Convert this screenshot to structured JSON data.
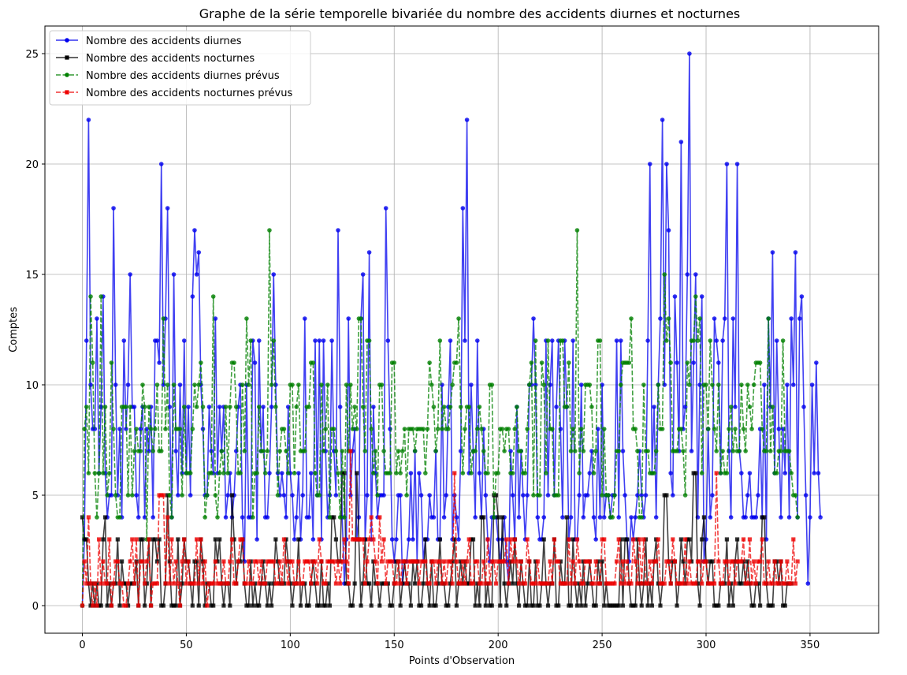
{
  "chart_data": {
    "type": "line",
    "title": "Graphe de la série temporelle bivariée du nombre des accidents diurnes et nocturnes",
    "xlabel": "Points d'Observation",
    "ylabel": "Comptes",
    "xlim": [
      -18,
      383
    ],
    "ylim": [
      -1.25,
      26.25
    ],
    "xticks": [
      0,
      50,
      100,
      150,
      200,
      250,
      300,
      350
    ],
    "yticks": [
      0,
      5,
      10,
      15,
      20,
      25
    ],
    "grid": true,
    "legend_position": "top-left",
    "series": [
      {
        "name": "Nombre des accidents diurnes",
        "color": "#0000ee",
        "line_style": "solid",
        "marker": "circle",
        "x_start": 0,
        "values": [
          0,
          3,
          12,
          22,
          10,
          8,
          8,
          13,
          6,
          9,
          14,
          6,
          4,
          5,
          5,
          18,
          10,
          5,
          8,
          4,
          12,
          8,
          10,
          15,
          9,
          9,
          5,
          4,
          8,
          9,
          4,
          8,
          7,
          9,
          4,
          12,
          12,
          11,
          20,
          10,
          13,
          18,
          9,
          4,
          15,
          7,
          5,
          10,
          6,
          12,
          6,
          9,
          5,
          14,
          17,
          15,
          16,
          10,
          8,
          5,
          5,
          9,
          7,
          6,
          13,
          6,
          9,
          7,
          9,
          4,
          5,
          6,
          4,
          5,
          7,
          9,
          10,
          4,
          2,
          10,
          4,
          4,
          12,
          11,
          3,
          12,
          7,
          9,
          4,
          4,
          6,
          9,
          15,
          10,
          6,
          5,
          6,
          5,
          4,
          9,
          6,
          5,
          3,
          4,
          6,
          3,
          5,
          13,
          4,
          4,
          6,
          3,
          12,
          5,
          12,
          3,
          12,
          7,
          4,
          5,
          12,
          7,
          5,
          17,
          9,
          4,
          1,
          3,
          13,
          5,
          7,
          8,
          3,
          4,
          13,
          15,
          3,
          5,
          16,
          3,
          9,
          6,
          4,
          5,
          5,
          5,
          18,
          12,
          8,
          3,
          2,
          3,
          5,
          5,
          1,
          2,
          2,
          3,
          6,
          3,
          7,
          2,
          6,
          5,
          2,
          3,
          3,
          5,
          4,
          4,
          7,
          3,
          3,
          10,
          4,
          5,
          9,
          12,
          3,
          5,
          4,
          3,
          7,
          18,
          12,
          22,
          6,
          10,
          7,
          4,
          12,
          6,
          4,
          8,
          5,
          3,
          2,
          4,
          4,
          4,
          3,
          2,
          3,
          4,
          2,
          1,
          7,
          5,
          3,
          9,
          4,
          7,
          5,
          3,
          5,
          10,
          10,
          13,
          10,
          4,
          3,
          3,
          4,
          12,
          5,
          10,
          12,
          5,
          9,
          12,
          8,
          4,
          12,
          9,
          3,
          4,
          12,
          3,
          3,
          5,
          10,
          4,
          5,
          5,
          6,
          7,
          4,
          3,
          8,
          4,
          10,
          4,
          5,
          5,
          4,
          5,
          5,
          12,
          4,
          12,
          7,
          5,
          3,
          2,
          4,
          3,
          4,
          5,
          7,
          5,
          4,
          5,
          12,
          20,
          6,
          9,
          4,
          10,
          13,
          22,
          10,
          20,
          17,
          6,
          5,
          14,
          11,
          7,
          21,
          8,
          9,
          15,
          25,
          7,
          11,
          15,
          4,
          10,
          14,
          2,
          3,
          8,
          4,
          5,
          13,
          12,
          11,
          6,
          12,
          13,
          20,
          7,
          4,
          13,
          9,
          20,
          7,
          6,
          4,
          4,
          5,
          6,
          4,
          4,
          4,
          5,
          8,
          4,
          10,
          3,
          13,
          9,
          16,
          6,
          12,
          8,
          4,
          8,
          6,
          10,
          4,
          13,
          10,
          16,
          4,
          13,
          14,
          9,
          5,
          1,
          4,
          10,
          6,
          11,
          6,
          4
        ],
        "visible_max": 365
      },
      {
        "name": "Nombre des accidents nocturnes",
        "color": "#000000",
        "line_style": "solid",
        "marker": "square",
        "x_start": 0,
        "values": [
          4,
          3,
          3,
          1,
          0,
          1,
          0,
          1,
          0,
          0,
          3,
          4,
          0,
          1,
          0,
          1,
          1,
          3,
          0,
          2,
          1,
          1,
          0,
          1,
          1,
          1,
          2,
          0,
          3,
          3,
          0,
          1,
          3,
          0,
          3,
          3,
          2,
          3,
          0,
          0,
          1,
          5,
          2,
          0,
          0,
          0,
          3,
          0,
          1,
          3,
          2,
          2,
          1,
          0,
          2,
          2,
          0,
          3,
          2,
          0,
          1,
          1,
          0,
          0,
          3,
          2,
          3,
          1,
          0,
          1,
          1,
          0,
          5,
          3,
          1,
          2,
          2,
          3,
          1,
          0,
          0,
          2,
          0,
          1,
          0,
          0,
          1,
          2,
          1,
          0,
          1,
          0,
          1,
          3,
          2,
          1,
          1,
          1,
          3,
          2,
          1,
          0,
          1,
          1,
          3,
          0,
          1,
          1,
          0,
          0,
          1,
          2,
          1,
          0,
          0,
          2,
          0,
          0,
          1,
          0,
          4,
          4,
          3,
          2,
          2,
          6,
          6,
          1,
          1,
          0,
          0,
          1,
          6,
          3,
          0,
          1,
          3,
          1,
          1,
          0,
          2,
          1,
          1,
          0,
          1,
          1,
          1,
          1,
          0,
          0,
          1,
          2,
          2,
          0,
          1,
          2,
          1,
          1,
          0,
          2,
          1,
          2,
          0,
          0,
          1,
          3,
          1,
          0,
          2,
          0,
          0,
          1,
          3,
          1,
          1,
          0,
          0,
          1,
          2,
          3,
          0,
          1,
          2,
          1,
          2,
          1,
          1,
          3,
          3,
          0,
          1,
          0,
          4,
          4,
          0,
          1,
          0,
          0,
          5,
          5,
          4,
          0,
          4,
          1,
          0,
          1,
          2,
          1,
          3,
          1,
          0,
          2,
          1,
          0,
          0,
          2,
          0,
          0,
          2,
          0,
          0,
          1,
          3,
          1,
          0,
          1,
          1,
          3,
          0,
          0,
          2,
          1,
          1,
          4,
          0,
          0,
          3,
          1,
          0,
          1,
          0,
          2,
          0,
          1,
          2,
          1,
          0,
          0,
          2,
          1,
          2,
          0,
          1,
          0,
          0,
          0,
          0,
          0,
          0,
          3,
          0,
          3,
          3,
          1,
          0,
          0,
          0,
          3,
          1,
          0,
          1,
          3,
          0,
          1,
          0,
          2,
          3,
          1,
          0,
          1,
          5,
          5,
          2,
          1,
          2,
          2,
          0,
          1,
          3,
          2,
          1,
          3,
          3,
          2,
          6,
          6,
          1,
          0,
          3,
          4,
          2,
          1,
          2,
          2,
          0,
          0,
          0,
          1,
          1,
          1,
          3,
          0,
          1,
          0,
          2,
          3,
          1,
          1,
          2,
          1,
          2,
          1,
          0,
          0,
          1,
          1,
          0,
          4,
          4,
          1,
          0,
          0,
          0,
          2,
          2,
          1,
          2,
          0,
          0,
          1,
          1,
          1
        ],
        "visible_max": 365
      },
      {
        "name": "Nombre des accidents diurnes prévus",
        "color": "#008000",
        "line_style": "dashed",
        "marker": "circle",
        "x_start": 0,
        "values": [
          0,
          8,
          9,
          6,
          14,
          11,
          6,
          4,
          6,
          14,
          6,
          9,
          5,
          6,
          11,
          8,
          5,
          4,
          4,
          9,
          9,
          9,
          5,
          9,
          5,
          7,
          8,
          7,
          7,
          10,
          9,
          3,
          9,
          8,
          7,
          8,
          10,
          7,
          7,
          13,
          8,
          10,
          5,
          4,
          10,
          8,
          8,
          8,
          5,
          9,
          6,
          6,
          6,
          8,
          10,
          9,
          10,
          11,
          9,
          4,
          5,
          6,
          6,
          14,
          5,
          4,
          6,
          7,
          6,
          9,
          6,
          9,
          11,
          11,
          9,
          6,
          6,
          10,
          7,
          13,
          10,
          12,
          4,
          6,
          6,
          9,
          7,
          7,
          6,
          7,
          17,
          10,
          12,
          9,
          5,
          7,
          8,
          8,
          7,
          6,
          10,
          10,
          6,
          9,
          10,
          7,
          7,
          7,
          9,
          9,
          11,
          11,
          6,
          5,
          5,
          10,
          7,
          8,
          10,
          4,
          8,
          8,
          7,
          6,
          4,
          7,
          4,
          10,
          7,
          10,
          8,
          9,
          8,
          13,
          13,
          9,
          7,
          12,
          12,
          8,
          6,
          7,
          5,
          10,
          10,
          7,
          6,
          6,
          6,
          11,
          11,
          6,
          7,
          6,
          7,
          8,
          5,
          8,
          8,
          8,
          7,
          8,
          8,
          8,
          8,
          6,
          8,
          11,
          10,
          9,
          7,
          8,
          12,
          8,
          9,
          8,
          8,
          9,
          10,
          11,
          11,
          13,
          9,
          6,
          8,
          9,
          9,
          6,
          7,
          7,
          8,
          9,
          8,
          7,
          6,
          6,
          10,
          10,
          4,
          6,
          6,
          8,
          8,
          7,
          8,
          8,
          6,
          6,
          8,
          9,
          7,
          7,
          6,
          6,
          8,
          10,
          11,
          5,
          12,
          5,
          5,
          11,
          10,
          6,
          12,
          8,
          8,
          5,
          5,
          5,
          12,
          12,
          9,
          9,
          11,
          7,
          8,
          7,
          17,
          6,
          8,
          7,
          10,
          10,
          10,
          9,
          6,
          7,
          12,
          12,
          5,
          8,
          5,
          5,
          4,
          4,
          5,
          7,
          7,
          10,
          11,
          11,
          11,
          11,
          13,
          8,
          8,
          7,
          4,
          4,
          10,
          7,
          7,
          6,
          6,
          6,
          7,
          10,
          8,
          8,
          15,
          12,
          13,
          11,
          7,
          7,
          7,
          8,
          8,
          7,
          5,
          11,
          10,
          12,
          12,
          14,
          12,
          13,
          6,
          10,
          10,
          8,
          12,
          10,
          8,
          7,
          10,
          6,
          7,
          6,
          6,
          8,
          9,
          7,
          8,
          7,
          7,
          10,
          8,
          7,
          10,
          9,
          8,
          10,
          11,
          11,
          11,
          8,
          7,
          7,
          13,
          7,
          9,
          6,
          6,
          7,
          7,
          12,
          7,
          7,
          7,
          6,
          5,
          5,
          4
        ],
        "visible_max": 363
      },
      {
        "name": "Nombre des accidents nocturnes prévus",
        "color": "#ee0000",
        "line_style": "dashed",
        "marker": "square",
        "x_start": 0,
        "values": [
          0,
          2,
          1,
          4,
          1,
          0,
          1,
          0,
          3,
          1,
          2,
          1,
          1,
          3,
          0,
          1,
          2,
          2,
          1,
          1,
          0,
          0,
          1,
          2,
          3,
          1,
          3,
          0,
          2,
          2,
          1,
          2,
          3,
          0,
          1,
          1,
          1,
          5,
          5,
          5,
          1,
          4,
          1,
          3,
          1,
          2,
          1,
          0,
          2,
          3,
          1,
          2,
          1,
          1,
          1,
          3,
          1,
          3,
          1,
          2,
          0,
          1,
          1,
          1,
          2,
          1,
          1,
          1,
          2,
          1,
          1,
          2,
          3,
          1,
          1,
          2,
          3,
          3,
          1,
          1,
          2,
          1,
          1,
          2,
          2,
          1,
          2,
          1,
          1,
          2,
          2,
          2,
          2,
          1,
          1,
          2,
          1,
          3,
          2,
          1,
          2,
          2,
          1,
          1,
          2,
          1,
          1,
          2,
          2,
          2,
          1,
          2,
          2,
          1,
          3,
          2,
          1,
          1,
          2,
          2,
          2,
          2,
          1,
          2,
          1,
          2,
          3,
          2,
          1,
          7,
          3,
          3,
          3,
          3,
          3,
          3,
          1,
          2,
          3,
          4,
          3,
          2,
          1,
          4,
          2,
          3,
          1,
          2,
          2,
          2,
          1,
          1,
          2,
          1,
          2,
          2,
          1,
          2,
          2,
          2,
          2,
          2,
          1,
          2,
          2,
          2,
          1,
          1,
          2,
          2,
          1,
          2,
          2,
          1,
          2,
          1,
          2,
          2,
          1,
          6,
          2,
          1,
          1,
          2,
          1,
          2,
          3,
          1,
          1,
          2,
          2,
          1,
          1,
          2,
          1,
          3,
          1,
          2,
          2,
          1,
          2,
          2,
          2,
          2,
          3,
          1,
          3,
          2,
          3,
          2,
          1,
          2,
          1,
          1,
          3,
          2,
          1,
          1,
          1,
          2,
          1,
          1,
          1,
          1,
          1,
          2,
          1,
          3,
          2,
          2,
          1,
          1,
          1,
          1,
          3,
          1,
          2,
          1,
          3,
          2,
          1,
          1,
          2,
          2,
          2,
          1,
          1,
          2,
          1,
          1,
          3,
          3,
          1,
          1,
          1,
          1,
          1,
          2,
          3,
          1,
          2,
          1,
          2,
          1,
          1,
          3,
          2,
          1,
          3,
          1,
          3,
          1,
          1,
          2,
          1,
          2,
          2,
          3,
          1,
          1,
          1,
          2,
          2,
          1,
          3,
          2,
          1,
          1,
          1,
          1,
          3,
          1,
          2,
          1,
          1,
          1,
          2,
          2,
          1,
          2,
          2,
          1,
          1,
          1,
          1,
          6,
          2,
          1,
          1,
          2,
          2,
          1,
          2,
          2,
          1,
          2,
          2,
          2,
          3,
          1,
          1,
          3,
          1,
          2,
          1,
          2,
          2,
          3,
          1,
          1,
          2,
          1,
          1,
          2,
          1,
          1,
          2,
          1,
          1,
          2,
          1,
          1,
          3,
          1,
          2
        ],
        "visible_max": 362
      }
    ]
  }
}
